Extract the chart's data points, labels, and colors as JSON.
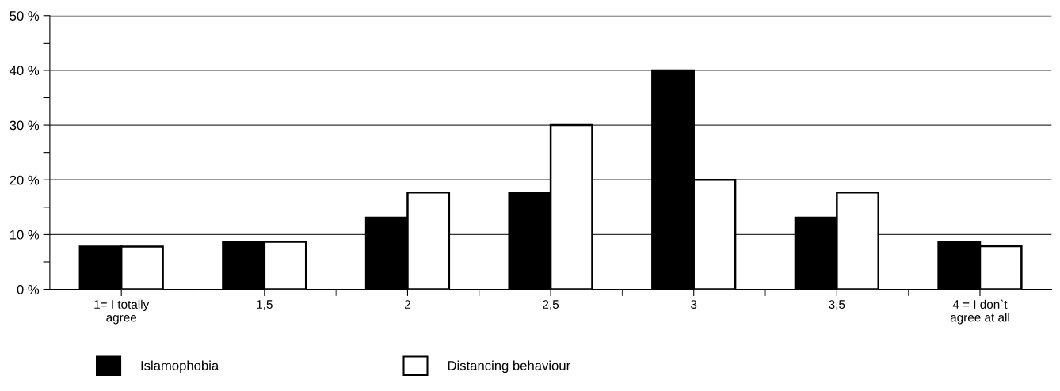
{
  "chart_data": {
    "type": "bar",
    "categories": [
      "1= I totally\nagree",
      "1,5",
      "2",
      "2,5",
      "3",
      "3,5",
      "4 = I don`t\nagree at all"
    ],
    "series": [
      {
        "name": "Islamophobia",
        "color": "#000000",
        "values": [
          7.8,
          8.6,
          13.1,
          17.6,
          40,
          13.1,
          8.7
        ]
      },
      {
        "name": "Distancing behaviour",
        "color": "#ffffff",
        "values": [
          7.8,
          8.7,
          17.7,
          30,
          20,
          17.7,
          7.9
        ]
      }
    ],
    "ylim": [
      0,
      50
    ],
    "yticks": [
      {
        "value": 0,
        "label": "0 %"
      },
      {
        "value": 5,
        "label": null
      },
      {
        "value": 10,
        "label": "10 %"
      },
      {
        "value": 15,
        "label": null
      },
      {
        "value": 20,
        "label": "20 %"
      },
      {
        "value": 25,
        "label": null
      },
      {
        "value": 30,
        "label": "30 %"
      },
      {
        "value": 35,
        "label": null
      },
      {
        "value": 40,
        "label": "40 %"
      },
      {
        "value": 45,
        "label": null
      },
      {
        "value": 50,
        "label": "50 %"
      }
    ],
    "grid": "y",
    "legend": "bottom left"
  }
}
